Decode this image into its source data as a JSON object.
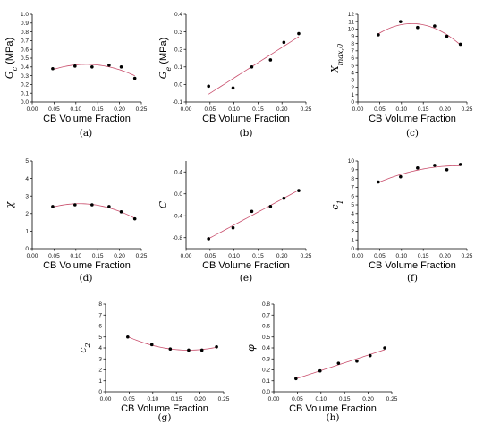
{
  "chart_data": [
    {
      "id": "a",
      "type": "scatter",
      "caption": "(a)",
      "xlabel": "CB Volume Fraction",
      "ylabel": "G_c (MPa)",
      "xlim": [
        0.0,
        0.25
      ],
      "ylim": [
        0.0,
        1.0
      ],
      "xticks": [
        "0.00",
        "0.05",
        "0.10",
        "0.15",
        "0.20",
        "0.25"
      ],
      "yticks": [
        "0.0",
        "0.1",
        "0.2",
        "0.3",
        "0.4",
        "0.5",
        "0.6",
        "0.7",
        "0.8",
        "0.9",
        "1.0"
      ],
      "points": {
        "x": [
          0.047,
          0.098,
          0.137,
          0.176,
          0.204,
          0.235
        ],
        "y": [
          0.38,
          0.41,
          0.4,
          0.42,
          0.4,
          0.27
        ]
      },
      "fit": "quadratic",
      "fit_color": "#c94f6d"
    },
    {
      "id": "b",
      "type": "scatter",
      "caption": "(b)",
      "xlabel": "CB Volume Fraction",
      "ylabel": "G_e (MPa)",
      "xlim": [
        0.0,
        0.25
      ],
      "ylim": [
        -0.1,
        0.4
      ],
      "xticks": [
        "0.00",
        "0.05",
        "0.10",
        "0.15",
        "0.20",
        "0.25"
      ],
      "yticks": [
        "-0.1",
        "0.0",
        "0.1",
        "0.2",
        "0.3",
        "0.4"
      ],
      "points": {
        "x": [
          0.047,
          0.098,
          0.137,
          0.176,
          0.204,
          0.235
        ],
        "y": [
          -0.01,
          -0.02,
          0.1,
          0.14,
          0.24,
          0.29
        ]
      },
      "fit": "linear",
      "fit_color": "#c94f6d"
    },
    {
      "id": "c",
      "type": "scatter",
      "caption": "(c)",
      "xlabel": "CB Volume Fraction",
      "ylabel": "X_max,0",
      "xlim": [
        0.0,
        0.25
      ],
      "ylim": [
        0,
        12
      ],
      "xticks": [
        "0.00",
        "0.05",
        "0.10",
        "0.15",
        "0.20",
        "0.25"
      ],
      "yticks": [
        "0",
        "1",
        "2",
        "3",
        "4",
        "5",
        "6",
        "7",
        "8",
        "9",
        "10",
        "11",
        "12"
      ],
      "points": {
        "x": [
          0.047,
          0.098,
          0.137,
          0.176,
          0.204,
          0.235
        ],
        "y": [
          9.2,
          11.0,
          10.2,
          10.4,
          9.0,
          7.9
        ]
      },
      "fit": "quadratic",
      "fit_color": "#c94f6d"
    },
    {
      "id": "d",
      "type": "scatter",
      "caption": "(d)",
      "xlabel": "CB Volume Fraction",
      "ylabel": "χ",
      "xlim": [
        0.0,
        0.25
      ],
      "ylim": [
        0,
        5
      ],
      "xticks": [
        "0.00",
        "0.05",
        "0.10",
        "0.15",
        "0.20",
        "0.25"
      ],
      "yticks": [
        "0",
        "1",
        "2",
        "3",
        "4",
        "5"
      ],
      "points": {
        "x": [
          0.047,
          0.098,
          0.137,
          0.176,
          0.204,
          0.235
        ],
        "y": [
          2.4,
          2.5,
          2.5,
          2.4,
          2.1,
          1.7
        ]
      },
      "fit": "quadratic",
      "fit_color": "#c94f6d"
    },
    {
      "id": "e",
      "type": "scatter",
      "caption": "(e)",
      "xlabel": "CB Volume Fraction",
      "ylabel": "C",
      "xlim": [
        0.0,
        0.25
      ],
      "ylim": [
        -1.0,
        0.6
      ],
      "xticks": [
        "0.00",
        "0.05",
        "0.10",
        "0.15",
        "0.20",
        "0.25"
      ],
      "yticks": [
        "-0.8",
        "-0.4",
        "0.0",
        "0.4"
      ],
      "points": {
        "x": [
          0.047,
          0.098,
          0.137,
          0.176,
          0.204,
          0.235
        ],
        "y": [
          -0.82,
          -0.62,
          -0.32,
          -0.23,
          -0.08,
          0.06
        ]
      },
      "fit": "linear",
      "fit_color": "#c94f6d"
    },
    {
      "id": "f",
      "type": "scatter",
      "caption": "(f)",
      "xlabel": "CB Volume Fraction",
      "ylabel": "c_1",
      "xlim": [
        0.0,
        0.25
      ],
      "ylim": [
        0,
        10
      ],
      "xticks": [
        "0.00",
        "0.05",
        "0.10",
        "0.15",
        "0.20",
        "0.25"
      ],
      "yticks": [
        "0",
        "1",
        "2",
        "3",
        "4",
        "5",
        "6",
        "7",
        "8",
        "9",
        "10"
      ],
      "points": {
        "x": [
          0.047,
          0.098,
          0.137,
          0.176,
          0.204,
          0.235
        ],
        "y": [
          7.6,
          8.2,
          9.2,
          9.5,
          9.0,
          9.6
        ]
      },
      "fit": "quadratic",
      "fit_color": "#c94f6d"
    },
    {
      "id": "g",
      "type": "scatter",
      "caption": "(g)",
      "xlabel": "CB Volume Fraction",
      "ylabel": "c_2",
      "xlim": [
        0.0,
        0.25
      ],
      "ylim": [
        0,
        8
      ],
      "xticks": [
        "0.00",
        "0.05",
        "0.10",
        "0.15",
        "0.20",
        "0.25"
      ],
      "yticks": [
        "0",
        "1",
        "2",
        "3",
        "4",
        "5",
        "6",
        "7",
        "8"
      ],
      "points": {
        "x": [
          0.047,
          0.098,
          0.137,
          0.176,
          0.204,
          0.235
        ],
        "y": [
          5.0,
          4.3,
          3.9,
          3.8,
          3.8,
          4.1
        ]
      },
      "fit": "quadratic",
      "fit_color": "#c94f6d"
    },
    {
      "id": "h",
      "type": "scatter",
      "caption": "(h)",
      "xlabel": "CB Volume Fraction",
      "ylabel": "φ",
      "xlim": [
        0.0,
        0.25
      ],
      "ylim": [
        0.0,
        0.8
      ],
      "xticks": [
        "0.00",
        "0.05",
        "0.10",
        "0.15",
        "0.20",
        "0.25"
      ],
      "yticks": [
        "0.0",
        "0.1",
        "0.2",
        "0.3",
        "0.4",
        "0.5",
        "0.6",
        "0.7",
        "0.8"
      ],
      "points": {
        "x": [
          0.047,
          0.098,
          0.137,
          0.176,
          0.204,
          0.235
        ],
        "y": [
          0.12,
          0.19,
          0.26,
          0.28,
          0.33,
          0.4
        ]
      },
      "fit": "linear",
      "fit_color": "#c94f6d"
    }
  ]
}
